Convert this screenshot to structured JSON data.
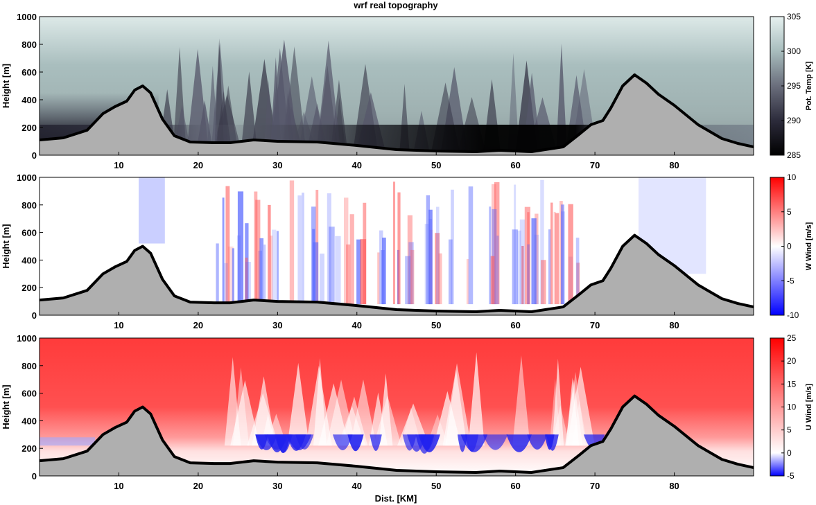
{
  "chart_data": [
    {
      "type": "heatmap",
      "title": "wrf real topography",
      "xlabel": "",
      "ylabel": "Height [m]",
      "x_ticks": [
        10,
        20,
        30,
        40,
        50,
        60,
        70,
        80
      ],
      "y_ticks": [
        0,
        200,
        400,
        600,
        800,
        1000
      ],
      "xlim": [
        0,
        90
      ],
      "ylim": [
        0,
        1000
      ],
      "colorbar": {
        "label": "Pot. Temp [K]",
        "ticks": [
          285,
          290,
          295,
          300,
          305
        ],
        "range": [
          285,
          305
        ],
        "colors": [
          "#000000",
          "#2c2b3b",
          "#6a6e7c",
          "#a8bdbd",
          "#e6f1f0"
        ]
      },
      "grid": false
    },
    {
      "type": "heatmap",
      "title": "",
      "xlabel": "",
      "ylabel": "Height [m]",
      "x_ticks": [
        10,
        20,
        30,
        40,
        50,
        60,
        70,
        80
      ],
      "y_ticks": [
        0,
        200,
        400,
        600,
        800,
        1000
      ],
      "xlim": [
        0,
        90
      ],
      "ylim": [
        0,
        1000
      ],
      "colorbar": {
        "label": "W Wind [m/s]",
        "ticks": [
          -10,
          -5,
          0,
          5,
          10
        ],
        "range": [
          -10,
          10
        ],
        "colors": [
          "#0000ff",
          "#ffffff",
          "#ff0000"
        ]
      },
      "grid": false
    },
    {
      "type": "heatmap",
      "title": "",
      "xlabel": "Dist. [KM]",
      "ylabel": "Height [m]",
      "x_ticks": [
        10,
        20,
        30,
        40,
        50,
        60,
        70,
        80
      ],
      "y_ticks": [
        0,
        200,
        400,
        600,
        800,
        1000
      ],
      "xlim": [
        0,
        90
      ],
      "ylim": [
        0,
        1000
      ],
      "colorbar": {
        "label": "U Wind [m/s]",
        "ticks": [
          -5,
          0,
          5,
          10,
          15,
          20,
          25
        ],
        "range": [
          -5,
          25
        ],
        "colors": [
          "#0000ff",
          "#ffffff",
          "#ff0000"
        ]
      },
      "grid": false
    }
  ],
  "terrain": {
    "x_km": [
      0,
      3,
      6,
      8,
      9.5,
      11,
      12,
      13,
      14,
      15.5,
      17,
      19,
      22,
      24,
      27,
      30,
      35,
      40,
      45,
      50,
      55,
      58,
      62,
      66,
      68,
      69.5,
      71,
      72,
      73.5,
      75,
      76.5,
      78,
      80,
      83,
      86,
      88,
      90
    ],
    "height_m": [
      110,
      125,
      180,
      300,
      350,
      390,
      470,
      500,
      450,
      260,
      140,
      95,
      90,
      90,
      110,
      100,
      95,
      70,
      40,
      30,
      25,
      35,
      25,
      60,
      150,
      220,
      250,
      340,
      500,
      580,
      520,
      440,
      360,
      220,
      120,
      85,
      60
    ]
  },
  "colors": {
    "terrain_fill": "#afafaf",
    "terrain_line": "#000000"
  }
}
